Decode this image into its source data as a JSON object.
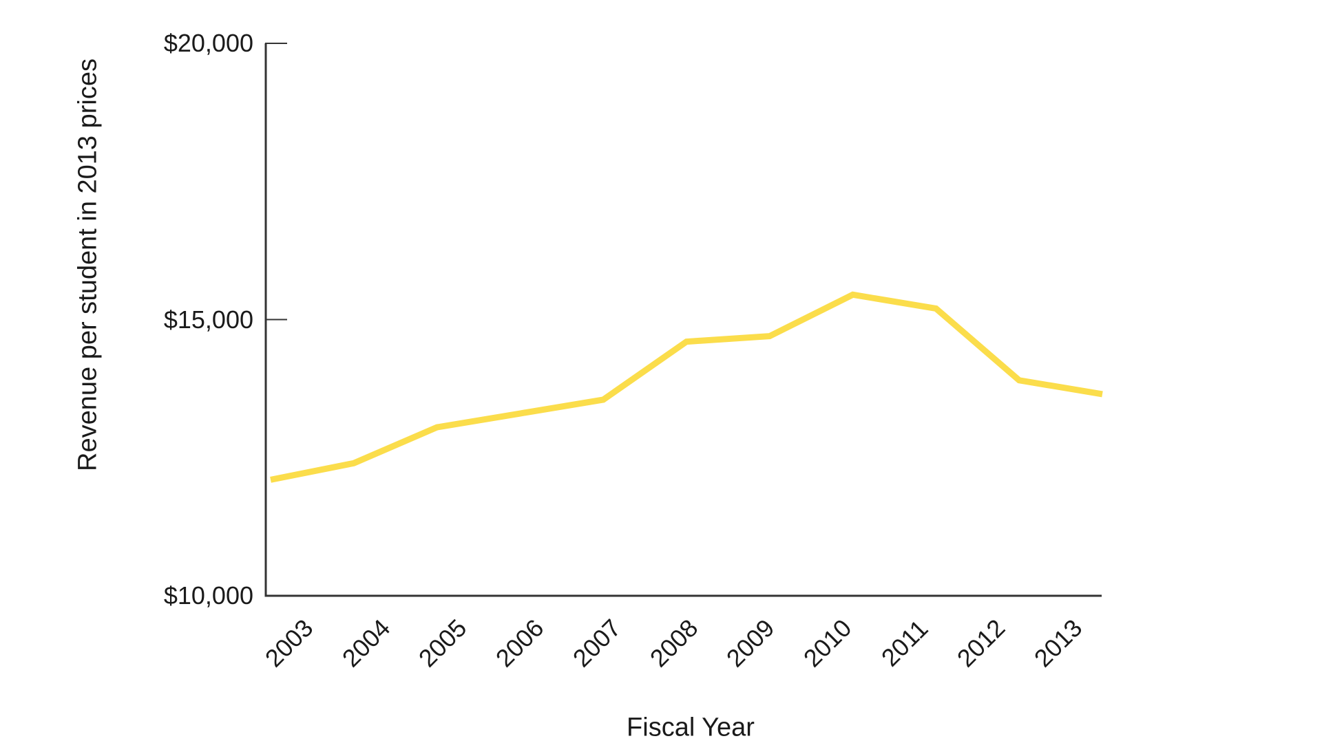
{
  "chart_data": {
    "type": "line",
    "x": [
      "2003",
      "2004",
      "2005",
      "2006",
      "2007",
      "2008",
      "2009",
      "2010",
      "2011",
      "2012",
      "2013"
    ],
    "series": [
      {
        "name": "Revenue per student",
        "values": [
          12100,
          12400,
          13050,
          13300,
          13550,
          14600,
          14700,
          15450,
          15200,
          13900,
          13650
        ]
      }
    ],
    "title": "",
    "xlabel": "Fiscal Year",
    "ylabel": "Revenue per student in 2013 prices",
    "ylim": [
      10000,
      20000
    ],
    "y_ticks": [
      {
        "label": "$10,000",
        "value": 10000
      },
      {
        "label": "$15,000",
        "value": 15000
      },
      {
        "label": "$20,000",
        "value": 20000
      }
    ],
    "grid": false,
    "legend": "none",
    "colors": {
      "line": "#FBDD4B",
      "axis": "#333333",
      "text": "#1a1a1a"
    }
  }
}
